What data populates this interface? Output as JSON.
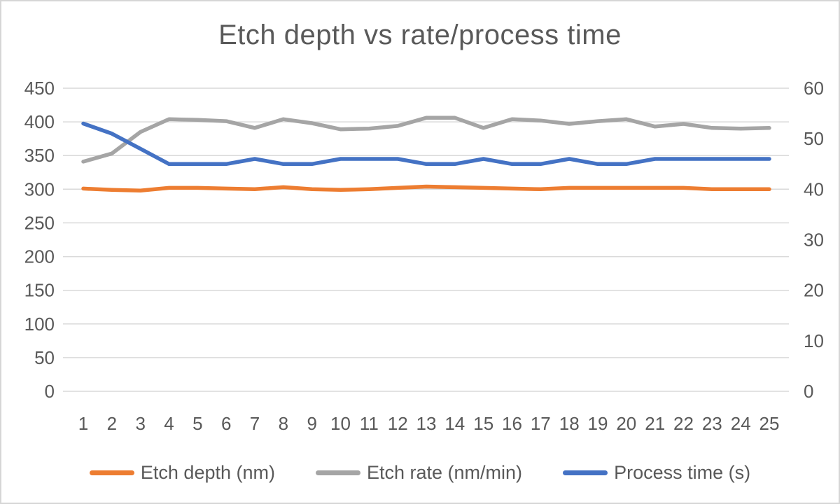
{
  "window": {
    "background": "#ffffff",
    "border_color": "#d6d6d6",
    "text_color": "#595959",
    "gridline_color": "#d9d9d9"
  },
  "chart_data": {
    "type": "line",
    "title": "Etch depth vs rate/process time",
    "categories": [
      1,
      2,
      3,
      4,
      5,
      6,
      7,
      8,
      9,
      10,
      11,
      12,
      13,
      14,
      15,
      16,
      17,
      18,
      19,
      20,
      21,
      22,
      23,
      24,
      25
    ],
    "series": [
      {
        "name": "Etch depth (nm)",
        "color": "#ED7D31",
        "axis": "left",
        "values": [
          301,
          299,
          298,
          302,
          302,
          301,
          300,
          303,
          300,
          299,
          300,
          302,
          304,
          303,
          302,
          301,
          300,
          302,
          302,
          302,
          302,
          302,
          300,
          300,
          300
        ]
      },
      {
        "name": "Etch rate (nm/min)",
        "color": "#A5A5A5",
        "axis": "left",
        "values": [
          341,
          353,
          385,
          404,
          403,
          401,
          391,
          404,
          398,
          389,
          390,
          394,
          406,
          406,
          391,
          404,
          402,
          397,
          401,
          404,
          393,
          397,
          391,
          390,
          391
        ]
      },
      {
        "name": "Process time (s)",
        "color": "#4472C4",
        "axis": "right",
        "values": [
          53,
          51,
          48,
          45,
          45,
          45,
          46,
          45,
          45,
          46,
          46,
          46,
          45,
          45,
          46,
          45,
          45,
          46,
          45,
          45,
          46,
          46,
          46,
          46,
          46
        ]
      }
    ],
    "left_axis": {
      "min": 0,
      "max": 450,
      "step": 50
    },
    "right_axis": {
      "min": 0,
      "max": 60,
      "step": 10
    },
    "grid": true,
    "legend_position": "bottom"
  }
}
